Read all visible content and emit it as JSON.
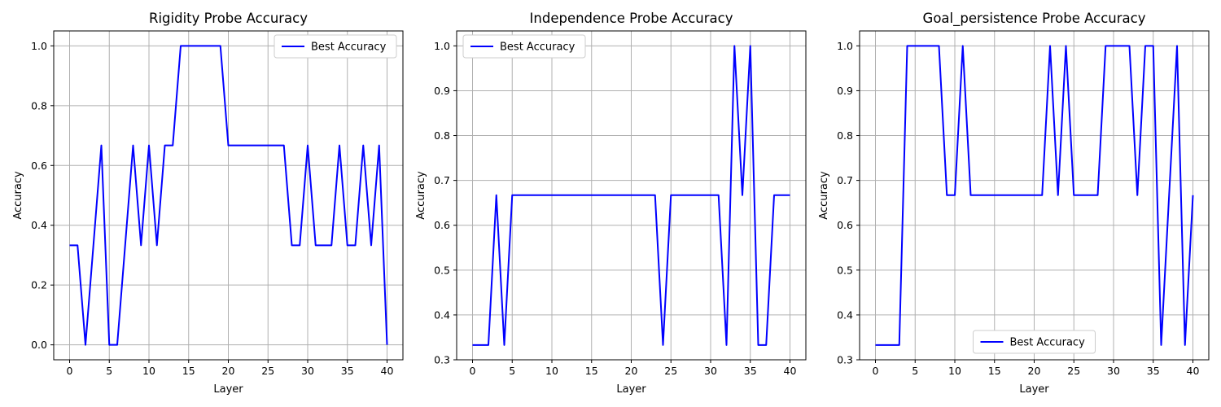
{
  "chart_data": [
    {
      "type": "line",
      "title": "Rigidity Probe Accuracy",
      "xlabel": "Layer",
      "ylabel": "Accuracy",
      "xlim": [
        -2,
        42
      ],
      "ylim": [
        -0.05,
        1.05
      ],
      "xticks": [
        0,
        5,
        10,
        15,
        20,
        25,
        30,
        35,
        40
      ],
      "yticks": [
        0.0,
        0.2,
        0.4,
        0.6,
        0.8,
        1.0
      ],
      "ytick_labels": [
        "0.0",
        "0.2",
        "0.4",
        "0.6",
        "0.8",
        "1.0"
      ],
      "grid": true,
      "legend_position": "top-right",
      "series": [
        {
          "name": "Best Accuracy",
          "color": "#0000ff",
          "x": [
            0,
            1,
            2,
            3,
            4,
            5,
            6,
            7,
            8,
            9,
            10,
            11,
            12,
            13,
            14,
            15,
            16,
            17,
            18,
            19,
            20,
            21,
            22,
            23,
            24,
            25,
            26,
            27,
            28,
            29,
            30,
            31,
            32,
            33,
            34,
            35,
            36,
            37,
            38,
            39,
            40
          ],
          "y": [
            0.333,
            0.333,
            0,
            0.333,
            0.667,
            0,
            0,
            0.333,
            0.667,
            0.333,
            0.667,
            0.333,
            0.667,
            0.667,
            1,
            1,
            1,
            1,
            1,
            1,
            0.667,
            0.667,
            0.667,
            0.667,
            0.667,
            0.667,
            0.667,
            0.667,
            0.333,
            0.333,
            0.667,
            0.333,
            0.333,
            0.333,
            0.667,
            0.333,
            0.333,
            0.667,
            0.333,
            0.667,
            0
          ]
        }
      ]
    },
    {
      "type": "line",
      "title": "Independence Probe Accuracy",
      "xlabel": "Layer",
      "ylabel": "Accuracy",
      "xlim": [
        -2,
        42
      ],
      "ylim": [
        0.3,
        1.0333
      ],
      "xticks": [
        0,
        5,
        10,
        15,
        20,
        25,
        30,
        35,
        40
      ],
      "yticks": [
        0.3,
        0.4,
        0.5,
        0.6,
        0.7,
        0.8,
        0.9,
        1.0
      ],
      "ytick_labels": [
        "0.3",
        "0.4",
        "0.5",
        "0.6",
        "0.7",
        "0.8",
        "0.9",
        "1.0"
      ],
      "grid": true,
      "legend_position": "top-left",
      "series": [
        {
          "name": "Best Accuracy",
          "color": "#0000ff",
          "x": [
            0,
            1,
            2,
            3,
            4,
            5,
            6,
            7,
            8,
            9,
            10,
            11,
            12,
            13,
            14,
            15,
            16,
            17,
            18,
            19,
            20,
            21,
            22,
            23,
            24,
            25,
            26,
            27,
            28,
            29,
            30,
            31,
            32,
            33,
            34,
            35,
            36,
            37,
            38,
            39,
            40
          ],
          "y": [
            0.333,
            0.333,
            0.333,
            0.667,
            0.333,
            0.667,
            0.667,
            0.667,
            0.667,
            0.667,
            0.667,
            0.667,
            0.667,
            0.667,
            0.667,
            0.667,
            0.667,
            0.667,
            0.667,
            0.667,
            0.667,
            0.667,
            0.667,
            0.667,
            0.333,
            0.667,
            0.667,
            0.667,
            0.667,
            0.667,
            0.667,
            0.667,
            0.333,
            1,
            0.667,
            1,
            0.333,
            0.333,
            0.667,
            0.667,
            0.667
          ]
        }
      ]
    },
    {
      "type": "line",
      "title": "Goal_persistence Probe Accuracy",
      "xlabel": "Layer",
      "ylabel": "Accuracy",
      "xlim": [
        -2,
        42
      ],
      "ylim": [
        0.3,
        1.0333
      ],
      "xticks": [
        0,
        5,
        10,
        15,
        20,
        25,
        30,
        35,
        40
      ],
      "yticks": [
        0.3,
        0.4,
        0.5,
        0.6,
        0.7,
        0.8,
        0.9,
        1.0
      ],
      "ytick_labels": [
        "0.3",
        "0.4",
        "0.5",
        "0.6",
        "0.7",
        "0.8",
        "0.9",
        "1.0"
      ],
      "grid": true,
      "legend_position": "bottom-center",
      "series": [
        {
          "name": "Best Accuracy",
          "color": "#0000ff",
          "x": [
            0,
            1,
            2,
            3,
            4,
            5,
            6,
            7,
            8,
            9,
            10,
            11,
            12,
            13,
            14,
            15,
            16,
            17,
            18,
            19,
            20,
            21,
            22,
            23,
            24,
            25,
            26,
            27,
            28,
            29,
            30,
            31,
            32,
            33,
            34,
            35,
            36,
            37,
            38,
            39,
            40
          ],
          "y": [
            0.333,
            0.333,
            0.333,
            0.333,
            1,
            1,
            1,
            1,
            1,
            0.667,
            0.667,
            1,
            0.667,
            0.667,
            0.667,
            0.667,
            0.667,
            0.667,
            0.667,
            0.667,
            0.667,
            0.667,
            1,
            0.667,
            1,
            0.667,
            0.667,
            0.667,
            0.667,
            1,
            1,
            1,
            1,
            0.667,
            1,
            1,
            0.333,
            0.667,
            1,
            0.333,
            0.667
          ]
        }
      ]
    }
  ]
}
